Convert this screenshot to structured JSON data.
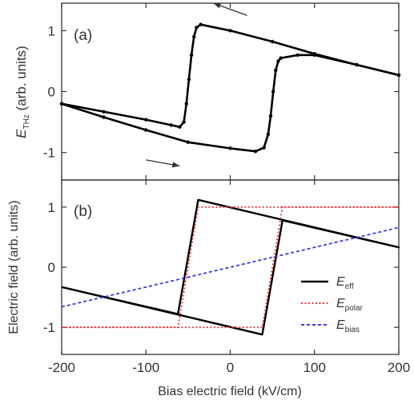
{
  "chart_data": [
    {
      "panel_label": "(a)",
      "type": "line",
      "ylabel_main": "E",
      "ylabel_sub": "THz",
      "ylabel_rest": " (arb. units)",
      "xlim": [
        -200,
        200
      ],
      "ylim": [
        -1.45,
        1.45
      ],
      "yticks": [
        -1,
        0,
        1
      ],
      "series": [
        {
          "values": [
            {
              "x": -200,
              "y": -0.2
            },
            {
              "x": -150,
              "y": -0.33
            },
            {
              "x": -100,
              "y": -0.46
            },
            {
              "x": -70,
              "y": -0.55
            },
            {
              "x": -60,
              "y": -0.58
            },
            {
              "x": -55,
              "y": -0.5
            },
            {
              "x": -52,
              "y": -0.2
            },
            {
              "x": -49,
              "y": 0.2
            },
            {
              "x": -46,
              "y": 0.6
            },
            {
              "x": -43,
              "y": 0.9
            },
            {
              "x": -40,
              "y": 1.05
            },
            {
              "x": -35,
              "y": 1.1
            },
            {
              "x": 0,
              "y": 1.0
            },
            {
              "x": 50,
              "y": 0.82
            },
            {
              "x": 100,
              "y": 0.62
            },
            {
              "x": 150,
              "y": 0.44
            },
            {
              "x": 200,
              "y": 0.27
            }
          ]
        },
        {
          "values": [
            {
              "x": -200,
              "y": -0.2
            },
            {
              "x": -150,
              "y": -0.42
            },
            {
              "x": -100,
              "y": -0.63
            },
            {
              "x": -50,
              "y": -0.83
            },
            {
              "x": 0,
              "y": -0.93
            },
            {
              "x": 30,
              "y": -0.98
            },
            {
              "x": 40,
              "y": -0.92
            },
            {
              "x": 45,
              "y": -0.7
            },
            {
              "x": 48,
              "y": -0.4
            },
            {
              "x": 51,
              "y": 0.0
            },
            {
              "x": 54,
              "y": 0.35
            },
            {
              "x": 57,
              "y": 0.5
            },
            {
              "x": 60,
              "y": 0.55
            },
            {
              "x": 80,
              "y": 0.6
            },
            {
              "x": 100,
              "y": 0.6
            },
            {
              "x": 150,
              "y": 0.44
            },
            {
              "x": 200,
              "y": 0.27
            }
          ]
        }
      ],
      "arrows": [
        {
          "from": [
            20,
            1.25
          ],
          "to": [
            -20,
            1.45
          ]
        },
        {
          "from": [
            -100,
            -1.12
          ],
          "to": [
            -60,
            -1.22
          ]
        }
      ]
    },
    {
      "panel_label": "(b)",
      "type": "line",
      "ylabel": "Electric field (arb. units)",
      "xlabel": "Bias electric field (kV/cm)",
      "xlim": [
        -200,
        200
      ],
      "ylim": [
        -1.45,
        1.45
      ],
      "yticks": [
        -1,
        0,
        1
      ],
      "xticks": [
        -200,
        -100,
        0,
        100,
        200
      ],
      "legend_position": "lower-right",
      "series": [
        {
          "name_main": "E",
          "name_sub": "eff",
          "color": "#000000",
          "style": "solid",
          "values": [
            {
              "x": -200,
              "y": -0.33
            },
            {
              "x": -62,
              "y": -0.78
            },
            {
              "x": -38,
              "y": 1.12
            },
            {
              "x": 200,
              "y": 0.33
            },
            {
              "x": 62,
              "y": 0.78
            },
            {
              "x": 38,
              "y": -1.12
            },
            {
              "x": -200,
              "y": -0.33
            }
          ]
        },
        {
          "name_main": "E",
          "name_sub": "polar",
          "color": "#e83a3a",
          "style": "dotted",
          "values": [
            {
              "x": -200,
              "y": -1.0
            },
            {
              "x": -62,
              "y": -1.0
            },
            {
              "x": -38,
              "y": 1.0
            },
            {
              "x": 200,
              "y": 1.0
            },
            {
              "x": 62,
              "y": 1.0
            },
            {
              "x": 38,
              "y": -1.0
            },
            {
              "x": -200,
              "y": -1.0
            }
          ]
        },
        {
          "name_main": "E",
          "name_sub": "bias",
          "color": "#3a3ae8",
          "style": "dashed",
          "values": [
            {
              "x": -200,
              "y": -0.66
            },
            {
              "x": 200,
              "y": 0.66
            }
          ]
        }
      ]
    }
  ],
  "colors": {
    "axis": "#333333",
    "eff": "#000000",
    "polar": "#e83a3a",
    "bias": "#3a3ae8"
  }
}
